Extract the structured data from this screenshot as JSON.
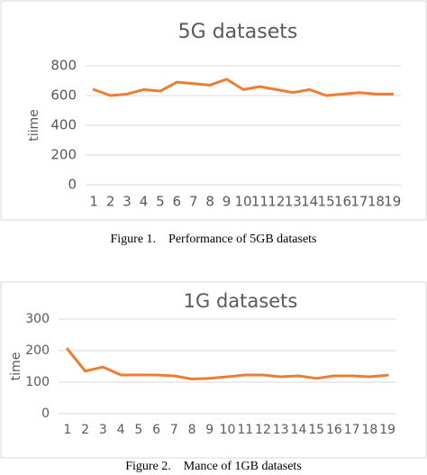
{
  "chart_data": [
    {
      "type": "line",
      "title": "5G datasets",
      "y_label": "tiime",
      "categories": [
        "1",
        "2",
        "3",
        "4",
        "5",
        "6",
        "7",
        "8",
        "9",
        "10",
        "11",
        "12",
        "13",
        "14",
        "15",
        "16",
        "17",
        "18",
        "19"
      ],
      "values": [
        640,
        600,
        610,
        640,
        630,
        690,
        680,
        670,
        710,
        640,
        660,
        640,
        620,
        640,
        600,
        610,
        620,
        610,
        610
      ],
      "color": "#ed7d31",
      "ylim": [
        0,
        800
      ],
      "yticks": [
        0,
        200,
        400,
        600,
        800
      ],
      "grid": true,
      "caption": "Figure 1.    Performance of 5GB datasets"
    },
    {
      "type": "line",
      "title": "1G datasets",
      "y_label": "time",
      "categories": [
        "1",
        "2",
        "3",
        "4",
        "5",
        "6",
        "7",
        "8",
        "9",
        "10",
        "11",
        "12",
        "13",
        "14",
        "15",
        "16",
        "17",
        "18",
        "19"
      ],
      "values": [
        205,
        135,
        148,
        123,
        123,
        123,
        120,
        110,
        112,
        117,
        123,
        123,
        117,
        120,
        112,
        120,
        120,
        117,
        122
      ],
      "color": "#ed7d31",
      "ylim": [
        0,
        300
      ],
      "yticks": [
        0,
        100,
        200,
        300
      ],
      "grid": true,
      "caption": "Figure 2.    Mance of 1GB datasets"
    }
  ]
}
